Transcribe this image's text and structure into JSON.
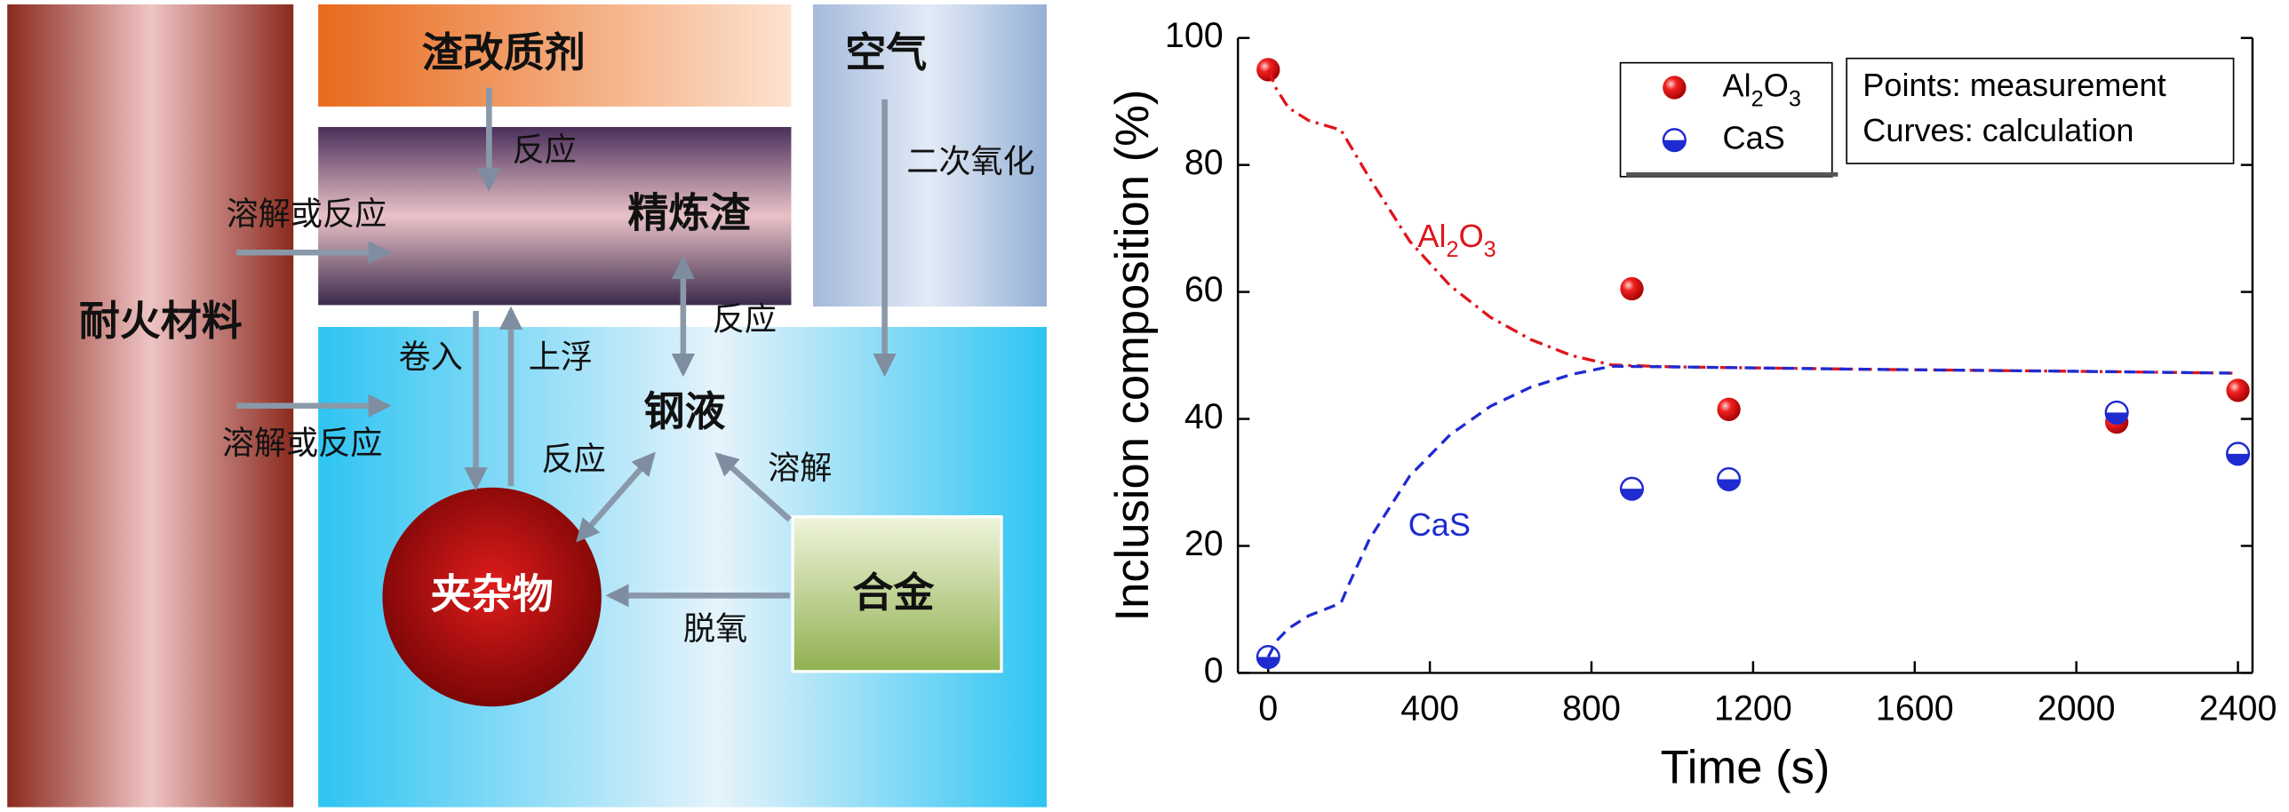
{
  "diagram": {
    "refractory": "耐火材料",
    "slag_modifier": "渣改质剂",
    "air": "空气",
    "refining_slag": "精炼渣",
    "steel": "钢液",
    "inclusion": "夹杂物",
    "alloy": "合金",
    "labels": {
      "modifier_slag": "反应",
      "refractory_slag": "溶解或反应",
      "refractory_steel": "溶解或反应",
      "reoxidation": "二次氧化",
      "slag_steel": "反应",
      "entrapment": "卷入",
      "flotation": "上浮",
      "inclusion_steel": "反应",
      "dissolution": "溶解",
      "deoxidation": "脱氧"
    }
  },
  "chart_data": {
    "type": "scatter",
    "x_label": "Time (s)",
    "y_label": "Inclusion composition (%)",
    "annotation": [
      "Points: measurement",
      "Curves: calculation"
    ],
    "xlim": [
      -75,
      2436
    ],
    "ylim": [
      0,
      100
    ],
    "xticks": [
      0,
      400,
      800,
      1200,
      1600,
      2000,
      2400
    ],
    "yticks": [
      0,
      20,
      40,
      60,
      80,
      100
    ],
    "series": [
      {
        "name": "Al2O3",
        "mode": "markers",
        "color": "#e8141b",
        "x": [
          0,
          900,
          1140,
          2100,
          2400
        ],
        "values": [
          95,
          60.5,
          41.5,
          39.5,
          44.5
        ]
      },
      {
        "name": "CaS",
        "mode": "markers",
        "color": "#1f2bd0",
        "x": [
          0,
          900,
          1140,
          2100,
          2400
        ],
        "values": [
          2.5,
          29,
          30.5,
          41,
          34.5
        ]
      },
      {
        "name": "Al2O3",
        "mode": "lines",
        "color": "#e0141b",
        "x": [
          0,
          20,
          50,
          100,
          180,
          250,
          350,
          450,
          550,
          650,
          750,
          850,
          1000,
          1500,
          2000,
          2400
        ],
        "values": [
          95,
          92,
          89,
          87,
          85.5,
          78,
          68,
          61,
          56,
          52.5,
          50,
          48.5,
          48.2,
          47.8,
          47.5,
          47.2
        ]
      },
      {
        "name": "CaS",
        "mode": "lines",
        "color": "#1f2bd0",
        "x": [
          0,
          20,
          50,
          100,
          180,
          200,
          250,
          350,
          450,
          550,
          650,
          750,
          850,
          1000,
          1500,
          2000,
          2400
        ],
        "values": [
          2.5,
          5,
          7,
          9,
          11,
          14,
          21,
          31,
          37.5,
          42,
          45,
          47,
          48.3,
          48.2,
          47.8,
          47.5,
          47.2
        ]
      }
    ]
  }
}
